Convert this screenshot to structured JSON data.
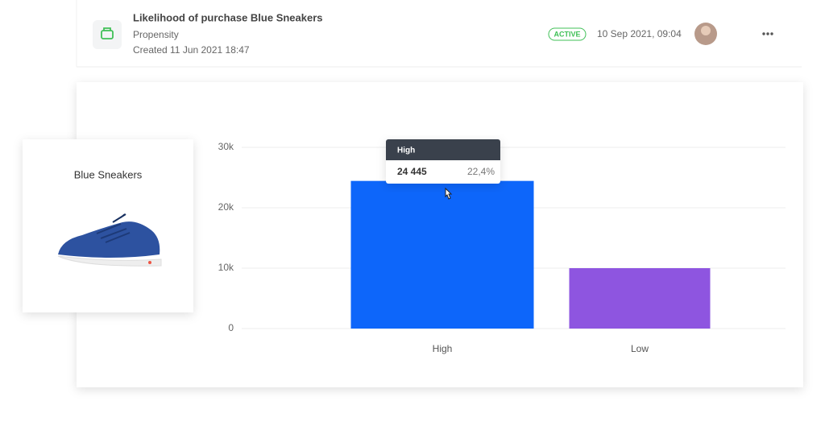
{
  "header": {
    "title": "Likelihood of purchase Blue Sneakers",
    "subtitle": "Propensity",
    "created": "Created 11 Jun 2021 18:47",
    "status": "ACTIVE",
    "updated": "10 Sep 2021, 09:04"
  },
  "product": {
    "name": "Blue Sneakers"
  },
  "chart_data": {
    "type": "bar",
    "categories": [
      "High",
      "Low"
    ],
    "values": [
      24445,
      10000
    ],
    "colors": [
      "#0d66fa",
      "#8e55e0"
    ],
    "ylim": [
      0,
      30000
    ],
    "yticks": [
      0,
      {
        "value": 10000,
        "label": "10k"
      },
      {
        "value": 20000,
        "label": "20k"
      },
      {
        "value": 30000,
        "label": "30k"
      }
    ],
    "grid": true,
    "tooltip": {
      "value_label": "24 445",
      "share": "22,4%"
    }
  }
}
